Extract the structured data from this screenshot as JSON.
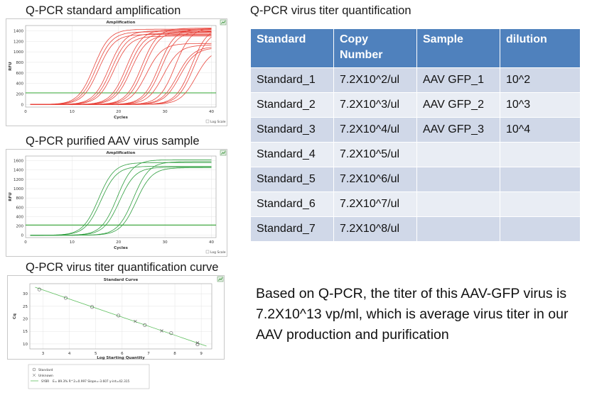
{
  "headings": {
    "amplification": "Q-PCR standard amplification",
    "purified": "Q-PCR purified AAV virus sample",
    "curve": "Q-PCR virus titer quantification curve",
    "titer": "Q-PCR virus titer quantification"
  },
  "note": "Based on Q-PCR, the titer of this  AAV-GFP virus is 7.2X10^13 vp/ml, which is average virus titer in our AAV production and purification",
  "table": {
    "headers": [
      "Standard",
      "Copy Number",
      "Sample",
      "dilution"
    ],
    "rows": [
      [
        "Standard_1",
        "7.2X10^2/ul",
        "AAV GFP_1",
        "10^2"
      ],
      [
        "Standard_2",
        "7.2X10^3/ul",
        "AAV GFP_2",
        "10^3"
      ],
      [
        "Standard_3",
        "7.2X10^4/ul",
        "AAV GFP_3",
        "10^4"
      ],
      [
        "Standard_4",
        "7.2X10^5/ul",
        "",
        ""
      ],
      [
        "Standard_5",
        "7.2X10^6/ul",
        "",
        ""
      ],
      [
        "Standard_6",
        "7.2X10^7/ul",
        "",
        ""
      ],
      [
        "Standard_7",
        "7.2X10^8/ul",
        "",
        ""
      ]
    ]
  },
  "colors": {
    "red": "#e8453c",
    "green": "#2e9e3e",
    "threshold": "#1a9c1a",
    "header": "#4f81bd"
  },
  "chart_data": [
    {
      "type": "line",
      "title": "Amplification",
      "xlabel": "Cycles",
      "ylabel": "RFU",
      "xlim": [
        0,
        41
      ],
      "ylim": [
        -50,
        1500
      ],
      "xticks": [
        0,
        10,
        20,
        30,
        40
      ],
      "yticks": [
        0,
        200,
        400,
        600,
        800,
        1000,
        1200,
        1400
      ],
      "threshold": 220,
      "log_scale_label": "Log Scale",
      "color": "#e8453c",
      "series": [
        {
          "ct": 11.5,
          "plateau": 1430
        },
        {
          "ct": 12.0,
          "plateau": 1380
        },
        {
          "ct": 12.5,
          "plateau": 1330
        },
        {
          "ct": 14.8,
          "plateau": 1400
        },
        {
          "ct": 15.3,
          "plateau": 1350
        },
        {
          "ct": 15.8,
          "plateau": 1300
        },
        {
          "ct": 18.5,
          "plateau": 1420
        },
        {
          "ct": 19.0,
          "plateau": 1370
        },
        {
          "ct": 19.5,
          "plateau": 1320
        },
        {
          "ct": 21.8,
          "plateau": 1450
        },
        {
          "ct": 22.3,
          "plateau": 1400
        },
        {
          "ct": 22.8,
          "plateau": 1160
        },
        {
          "ct": 25.5,
          "plateau": 1440
        },
        {
          "ct": 26.0,
          "plateau": 1390
        },
        {
          "ct": 26.5,
          "plateau": 1130
        },
        {
          "ct": 29.0,
          "plateau": 1460
        },
        {
          "ct": 29.5,
          "plateau": 1100
        },
        {
          "ct": 30.0,
          "plateau": 1080
        },
        {
          "ct": 32.5,
          "plateau": 1470
        },
        {
          "ct": 33.0,
          "plateau": 1420
        },
        {
          "ct": 33.5,
          "plateau": 1060
        }
      ]
    },
    {
      "type": "line",
      "title": "Amplification",
      "xlabel": "Cycles",
      "ylabel": "RFU",
      "xlim": [
        0,
        41
      ],
      "ylim": [
        -50,
        1700
      ],
      "xticks": [
        0,
        10,
        20,
        30,
        40
      ],
      "yticks": [
        0,
        200,
        400,
        600,
        800,
        1000,
        1200,
        1400,
        1600
      ],
      "threshold": 220,
      "log_scale_label": "Log Scale",
      "color": "#2e9e3e",
      "series": [
        {
          "ct": 12.5,
          "plateau": 1560
        },
        {
          "ct": 13.0,
          "plateau": 1480
        },
        {
          "ct": 16.5,
          "plateau": 1620
        },
        {
          "ct": 17.0,
          "plateau": 1460
        },
        {
          "ct": 20.0,
          "plateau": 1580
        },
        {
          "ct": 20.6,
          "plateau": 1450
        }
      ]
    },
    {
      "type": "scatter",
      "title": "Standard Curve",
      "xlabel": "Log Starting Quantity",
      "ylabel": "Cq",
      "xlim": [
        2.5,
        9.4
      ],
      "ylim": [
        8,
        34
      ],
      "xticks": [
        3,
        4,
        5,
        6,
        7,
        8,
        9
      ],
      "yticks": [
        10,
        15,
        20,
        25,
        30
      ],
      "line": {
        "slope": -3.607,
        "intercept": 42.315
      },
      "standard": [
        [
          2.86,
          31.7
        ],
        [
          3.86,
          28.3
        ],
        [
          4.86,
          24.7
        ],
        [
          5.86,
          21.3
        ],
        [
          6.86,
          17.5
        ],
        [
          7.86,
          14.3
        ],
        [
          8.86,
          9.8
        ]
      ],
      "unknown": [
        [
          6.5,
          19.0
        ],
        [
          7.5,
          15.2
        ],
        [
          8.86,
          10.4
        ]
      ],
      "legend": {
        "standard": "Standard",
        "unknown": "Unknown",
        "sybr_name": "SYBR",
        "sybr_stats": "E= 89.3% R^2=0.997 Slope=-3.607 y-int=42.315"
      }
    }
  ]
}
